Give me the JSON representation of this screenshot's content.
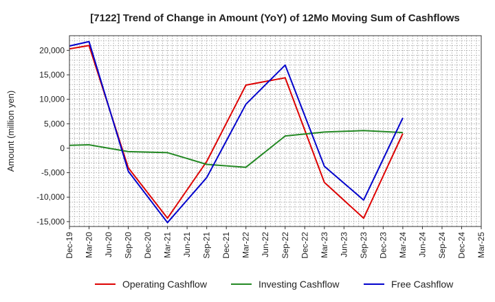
{
  "chart_data": {
    "type": "line",
    "title": "[7122]  Trend of Change in Amount (YoY) of 12Mo Moving Sum of Cashflows",
    "xlabel": "",
    "ylabel": "Amount (million yen)",
    "ylim": [
      -16000,
      23000
    ],
    "yticks": [
      -15000,
      -10000,
      -5000,
      0,
      5000,
      10000,
      15000,
      20000
    ],
    "ytick_labels": [
      "-15,000",
      "-10,000",
      "-5,000",
      "0",
      "5,000",
      "10,000",
      "15,000",
      "20,000"
    ],
    "categories": [
      "Dec-19",
      "Mar-20",
      "Jun-20",
      "Sep-20",
      "Dec-20",
      "Mar-21",
      "Jun-21",
      "Sep-21",
      "Dec-21",
      "Mar-22",
      "Jun-22",
      "Sep-22",
      "Dec-22",
      "Mar-23",
      "Jun-23",
      "Sep-23",
      "Dec-23",
      "Mar-24",
      "Jun-24",
      "Sep-24",
      "Dec-24",
      "Mar-25"
    ],
    "grid": true,
    "legend_position": "bottom",
    "series": [
      {
        "name": "Operating Cashflow",
        "color": "#dd0000",
        "values": [
          20300,
          21000,
          null,
          -4000,
          null,
          -14300,
          null,
          -2700,
          null,
          12900,
          null,
          14400,
          null,
          -7000,
          null,
          -14300,
          null,
          3000,
          null,
          null,
          null,
          null
        ]
      },
      {
        "name": "Investing Cashflow",
        "color": "#228822",
        "values": [
          600,
          700,
          null,
          -700,
          null,
          -900,
          null,
          -3300,
          null,
          -3900,
          null,
          2500,
          null,
          3300,
          null,
          3600,
          null,
          3200,
          null,
          null,
          null,
          null
        ]
      },
      {
        "name": "Free Cashflow",
        "color": "#0000cc",
        "values": [
          20900,
          21800,
          null,
          -4700,
          null,
          -15200,
          null,
          -6000,
          null,
          9000,
          null,
          17000,
          null,
          -3700,
          null,
          -10600,
          null,
          6200,
          null,
          null,
          null,
          null
        ]
      }
    ]
  }
}
